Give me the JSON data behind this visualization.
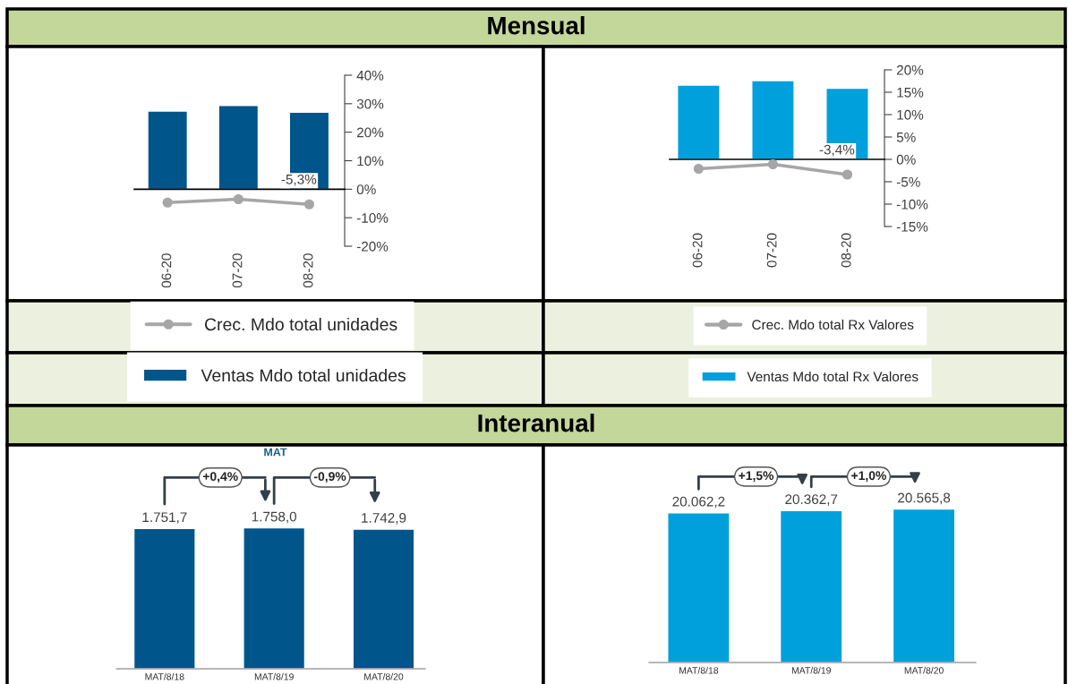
{
  "chart_data": [
    {
      "type": "other",
      "title": "Mensual"
    },
    {
      "type": "bar",
      "categories": [
        "06-20",
        "07-20",
        "08-20"
      ],
      "series": [
        {
          "name": "Crec. Mdo total unidades",
          "type": "line",
          "color": "#a6a6a6",
          "values": [
            -4.7,
            -3.5,
            -5.3
          ],
          "value_labels": [
            null,
            null,
            "-5,3%"
          ]
        },
        {
          "name": "Ventas Mdo total unidades",
          "type": "bar",
          "color": "#00558a",
          "values": [
            27.4,
            29.4,
            27.0
          ]
        }
      ],
      "ylim": [
        -20,
        40
      ],
      "yticks": [
        {
          "value": -20,
          "label": "-20%"
        },
        {
          "value": -10,
          "label": "-10%"
        },
        {
          "value": 0,
          "label": "0%"
        },
        {
          "value": 10,
          "label": "10%"
        },
        {
          "value": 20,
          "label": "20%"
        },
        {
          "value": 30,
          "label": "30%"
        },
        {
          "value": 40,
          "label": "40%"
        }
      ],
      "marker": "circle",
      "legend": "bottom"
    },
    {
      "type": "bar",
      "categories": [
        "06-20",
        "07-20",
        "08-20"
      ],
      "series": [
        {
          "name": "Crec. Mdo total Rx Valores",
          "type": "line",
          "color": "#a6a6a6",
          "values": [
            -2.1,
            -1.1,
            -3.4
          ],
          "value_labels": [
            null,
            null,
            "-3,4%"
          ]
        },
        {
          "name": "Ventas Mdo total Rx Valores",
          "type": "bar",
          "color": "#00a0dc",
          "values": [
            16.6,
            17.6,
            15.9
          ]
        }
      ],
      "ylim": [
        -15,
        20
      ],
      "yticks": [
        {
          "value": -15,
          "label": "-15%"
        },
        {
          "value": -10,
          "label": "-10%"
        },
        {
          "value": -5,
          "label": "-5%"
        },
        {
          "value": 0,
          "label": "0%"
        },
        {
          "value": 5,
          "label": "5%"
        },
        {
          "value": 10,
          "label": "10%"
        },
        {
          "value": 15,
          "label": "15%"
        },
        {
          "value": 20,
          "label": "20%"
        }
      ],
      "marker": "circle",
      "legend": "bottom"
    },
    {
      "type": "other",
      "title": "Interanual"
    },
    {
      "type": "bar",
      "title": "MAT",
      "categories": [
        "MAT/8/18",
        "MAT/8/19",
        "MAT/8/20"
      ],
      "values": [
        1751.7,
        1758.0,
        1742.9
      ],
      "value_labels": [
        "1.751,7",
        "1.758,0",
        "1.742,9"
      ],
      "color": "#00558a",
      "annotations": [
        "+0,4%",
        "-0,9%"
      ],
      "tick_labels": "x"
    },
    {
      "type": "bar",
      "categories": [
        "MAT/8/18",
        "MAT/8/19",
        "MAT/8/20"
      ],
      "values": [
        20062.2,
        20362.7,
        20565.8
      ],
      "value_labels": [
        "20.062,2",
        "20.362,7",
        "20.565,8"
      ],
      "color": "#00a0dc",
      "annotations": [
        "+1,5%",
        "+1,0%"
      ],
      "tick_labels": "x"
    }
  ]
}
